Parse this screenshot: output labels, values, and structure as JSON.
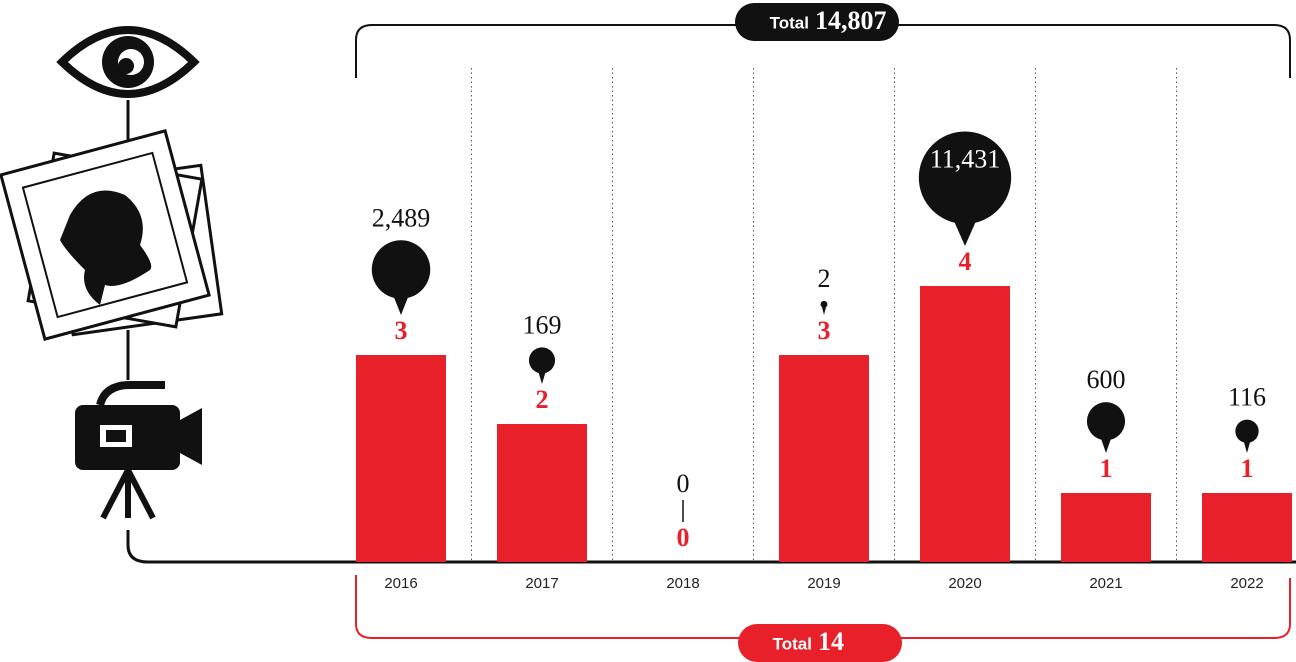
{
  "chart_data": {
    "type": "bar",
    "categories": [
      "2016",
      "2017",
      "2018",
      "2019",
      "2020",
      "2021",
      "2022"
    ],
    "series": [
      {
        "color": "#e8202a",
        "values": [
          3,
          2,
          0,
          3,
          4,
          1,
          1
        ]
      },
      {
        "color": "#111111",
        "values": [
          2489,
          169,
          0,
          2,
          11431,
          600,
          116
        ],
        "value_labels": [
          "2,489",
          "169",
          "0",
          "2",
          "11,431",
          "600",
          "116"
        ]
      }
    ],
    "ylim": [
      0,
      4
    ],
    "totals": [
      {
        "text": "Total",
        "value": 14807,
        "value_label": "14,807",
        "color": "#111111"
      },
      {
        "text": "Total",
        "value": 14,
        "color": "#e8202a"
      }
    ]
  }
}
